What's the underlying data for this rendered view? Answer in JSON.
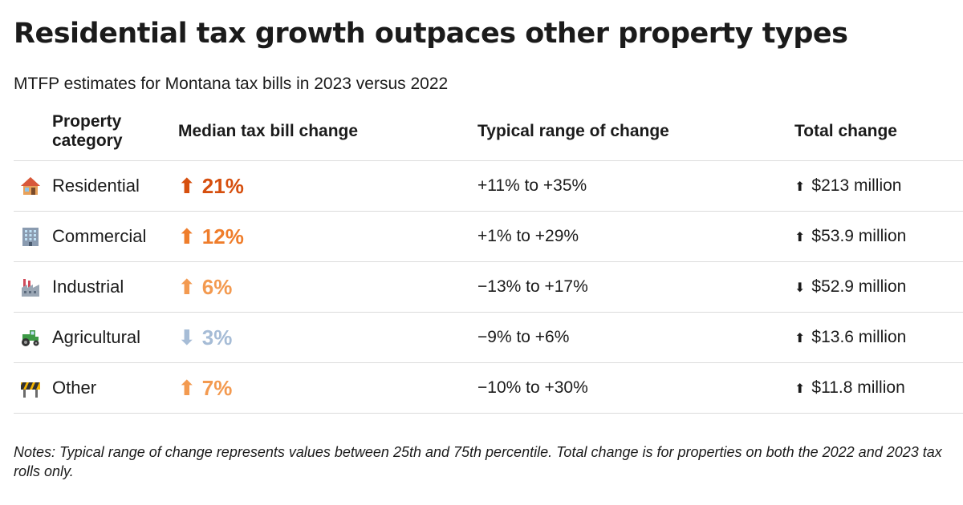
{
  "title": "Residential tax growth outpaces other property types",
  "subtitle": "MTFP estimates for Montana tax bills in 2023 versus 2022",
  "colors": {
    "up_strong": "#d64f0e",
    "up_mid": "#ef7d2b",
    "up_light": "#f39a50",
    "down": "#a6bcd6",
    "rule": "#dcdcdc"
  },
  "chart_data": {
    "type": "table",
    "columns": [
      "Property category",
      "Median tax bill change",
      "Typical range of change",
      "Total change"
    ],
    "rows": [
      {
        "icon": "house-icon",
        "category": "Residential",
        "median_arrow": "⬆",
        "median_change": "21%",
        "median_value": 21,
        "median_color": "#d64f0e",
        "range": "+11% to +35%",
        "total_arrow": "⬆",
        "total_change": "$213 million",
        "total_value_millions": 213
      },
      {
        "icon": "office-building-icon",
        "category": "Commercial",
        "median_arrow": "⬆",
        "median_change": "12%",
        "median_value": 12,
        "median_color": "#ef7d2b",
        "range": "+1% to +29%",
        "total_arrow": "⬆",
        "total_change": "$53.9 million",
        "total_value_millions": 53.9
      },
      {
        "icon": "factory-icon",
        "category": "Industrial",
        "median_arrow": "⬆",
        "median_change": "6%",
        "median_value": 6,
        "median_color": "#f39a50",
        "range": "−13% to +17%",
        "total_arrow": "⬇",
        "total_change": "$52.9 million",
        "total_value_millions": -52.9
      },
      {
        "icon": "tractor-icon",
        "category": "Agricultural",
        "median_arrow": "⬇",
        "median_change": "3%",
        "median_value": -3,
        "median_color": "#a6bcd6",
        "range": "−9% to +6%",
        "total_arrow": "⬆",
        "total_change": "$13.6 million",
        "total_value_millions": 13.6
      },
      {
        "icon": "construction-barrier-icon",
        "category": "Other",
        "median_arrow": "⬆",
        "median_change": "7%",
        "median_value": 7,
        "median_color": "#f39a50",
        "range": "−10% to +30%",
        "total_arrow": "⬆",
        "total_change": "$11.8 million",
        "total_value_millions": 11.8
      }
    ]
  },
  "notes": "Notes: Typical range of change represents values between 25th and 75th percentile. Total change is for properties on both the 2022 and 2023 tax rolls only."
}
